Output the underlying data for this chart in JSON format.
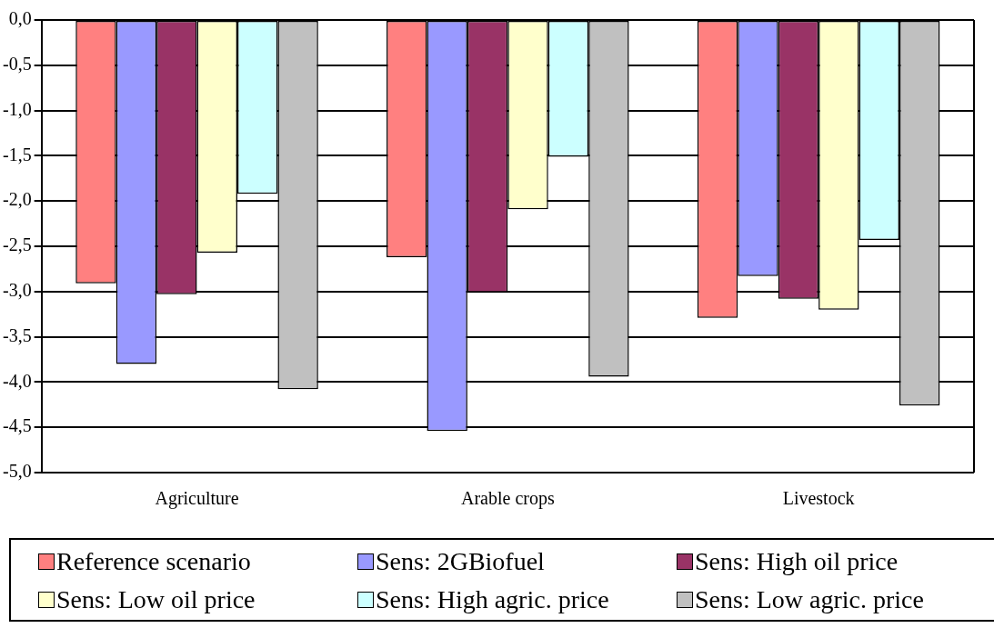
{
  "chart_data": {
    "type": "bar",
    "categories": [
      "Agriculture",
      "Arable crops",
      "Livestock"
    ],
    "series": [
      {
        "name": "Reference scenario",
        "color": "#ff8080",
        "values": [
          -2.91,
          -2.62,
          -3.29
        ]
      },
      {
        "name": "Sens: 2GBiofuel",
        "color": "#9999ff",
        "values": [
          -3.8,
          -4.54,
          -2.83
        ]
      },
      {
        "name": "Sens: High oil price",
        "color": "#993366",
        "values": [
          -3.03,
          -3.01,
          -3.08
        ]
      },
      {
        "name": "Sens: Low oil price",
        "color": "#ffffcc",
        "values": [
          -2.57,
          -2.09,
          -3.2
        ]
      },
      {
        "name": "Sens: High agric. price",
        "color": "#ccffff",
        "values": [
          -1.92,
          -1.51,
          -2.43
        ]
      },
      {
        "name": "Sens: Low agric. price",
        "color": "#c0c0c0",
        "values": [
          -4.08,
          -3.94,
          -4.26
        ]
      }
    ],
    "ylim": [
      -5,
      0
    ],
    "yticks": [
      {
        "value": 0,
        "label": "0,0"
      },
      {
        "value": -0.5,
        "label": "-0,5"
      },
      {
        "value": -1,
        "label": "-1,0"
      },
      {
        "value": -1.5,
        "label": "-1,5"
      },
      {
        "value": -2,
        "label": "-2,0"
      },
      {
        "value": -2.5,
        "label": "-2,5"
      },
      {
        "value": -3,
        "label": "-3,0"
      },
      {
        "value": -3.5,
        "label": "-3,5"
      },
      {
        "value": -4,
        "label": "-4,0"
      },
      {
        "value": -4.5,
        "label": "-4,5"
      },
      {
        "value": -5,
        "label": "-5,0"
      }
    ],
    "grid": "y",
    "legend": "bottom"
  }
}
